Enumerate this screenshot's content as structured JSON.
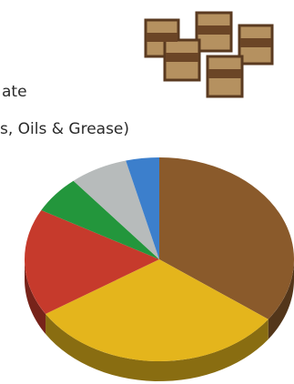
{
  "texts": {
    "line1": "ate",
    "line2": "s, Oils & Grease)"
  },
  "chart_data": {
    "type": "pie3d",
    "values": [
      35,
      31,
      17,
      6,
      7,
      4
    ],
    "colors": [
      "#8a5a2b",
      "#e4b51c",
      "#c63a2c",
      "#23963c",
      "#b7bbbb",
      "#3c7fcc"
    ]
  }
}
